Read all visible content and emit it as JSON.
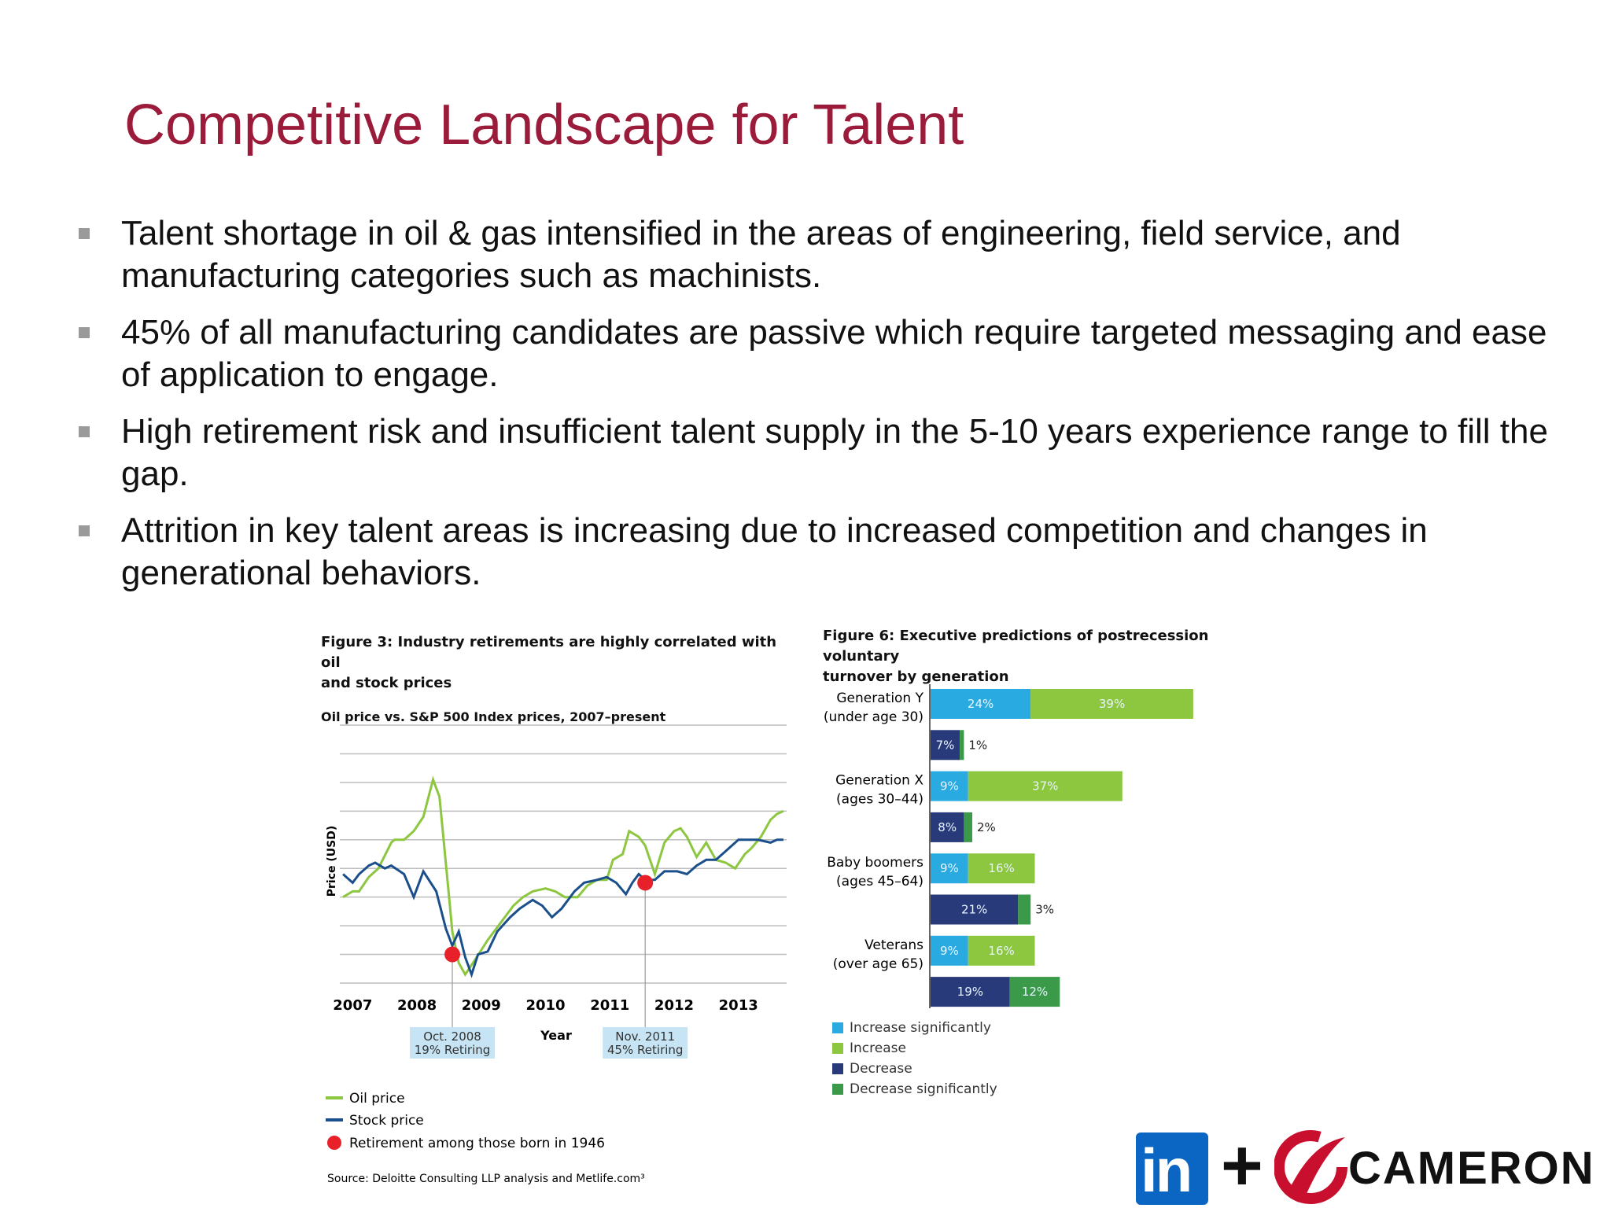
{
  "slide": {
    "title": "Competitive Landscape for Talent",
    "bullets": [
      "Talent shortage in oil & gas intensified in the areas of engineering, field service, and manufacturing categories such as machinists.",
      "45% of all manufacturing candidates are passive which require targeted messaging and ease of application to engage.",
      "High retirement risk and insufficient talent supply in the 5-10 years experience range to fill the gap.",
      "Attrition in key talent areas is increasing due to increased competition and changes in generational behaviors."
    ]
  },
  "figure3": {
    "title_line1": "Figure 3: Industry retirements are highly correlated with oil",
    "title_line2": "and stock prices",
    "subtitle": "Oil price vs. S&P 500 Index prices, 2007–present",
    "callout1_line1": "Oct. 2008",
    "callout1_line2": "19% Retiring",
    "callout2_line1": "Nov. 2011",
    "callout2_line2": "45% Retiring",
    "legend_oil": "Oil price",
    "legend_stock": "Stock price",
    "legend_retire": "Retirement among those born in 1946",
    "source": "Source: Deloitte Consulting LLP analysis and Metlife.com³"
  },
  "figure6": {
    "title_line1": "Figure 6: Executive predictions of postrecession voluntary",
    "title_line2": "turnover by generation",
    "groups": [
      {
        "label1": "Generation Y",
        "label2": "(under age 30)"
      },
      {
        "label1": "Generation X",
        "label2": "(ages 30–44)"
      },
      {
        "label1": "Baby boomers",
        "label2": "(ages 45–64)"
      },
      {
        "label1": "Veterans",
        "label2": "(over age 65)"
      }
    ],
    "legend": [
      "Increase significantly",
      "Increase",
      "Decrease",
      "Decrease significantly"
    ]
  },
  "logos": {
    "linkedin": "in",
    "plus": "+",
    "cameron": "CAMERON"
  },
  "colors": {
    "title": "#9b1b3a",
    "oil": "#8dc63f",
    "stock": "#1b4f8c",
    "retire": "#e8202a",
    "inc_sig": "#29abe2",
    "inc": "#8dc63f",
    "dec": "#283a7a",
    "dec_sig": "#3a9a4a"
  },
  "chart_data": [
    {
      "type": "line",
      "title": "Figure 3: Industry retirements are highly correlated with oil and stock prices",
      "subtitle": "Oil price vs. S&P 500 Index prices, 2007–present",
      "xlabel": "Year",
      "ylabel": "Price (USD)",
      "x_ticks": [
        "2007",
        "2008",
        "2009",
        "2010",
        "2011",
        "2012",
        "2013"
      ],
      "xlim": [
        2007,
        2013.7
      ],
      "ylim": [
        0,
        9
      ],
      "grid": true,
      "series": [
        {
          "name": "Oil price",
          "x": [
            2006.85,
            2007.0,
            2007.1,
            2007.25,
            2007.4,
            2007.6,
            2007.65,
            2007.8,
            2007.95,
            2008.1,
            2008.25,
            2008.35,
            2008.5,
            2008.55,
            2008.65,
            2008.75,
            2008.9,
            2009.1,
            2009.3,
            2009.5,
            2009.65,
            2009.8,
            2010.0,
            2010.15,
            2010.3,
            2010.5,
            2010.65,
            2010.8,
            2010.95,
            2011.05,
            2011.2,
            2011.3,
            2011.45,
            2011.55,
            2011.7,
            2011.85,
            2012.0,
            2012.1,
            2012.2,
            2012.35,
            2012.5,
            2012.65,
            2012.8,
            2012.95,
            2013.1,
            2013.2,
            2013.35,
            2013.5,
            2013.6,
            2013.7
          ],
          "values": [
            3.0,
            3.2,
            3.2,
            3.7,
            4.0,
            4.9,
            5.0,
            5.0,
            5.3,
            5.8,
            7.1,
            6.5,
            3.0,
            1.8,
            0.7,
            0.3,
            0.8,
            1.5,
            2.1,
            2.7,
            3.0,
            3.2,
            3.3,
            3.2,
            3.0,
            3.0,
            3.4,
            3.6,
            3.6,
            4.3,
            4.5,
            5.3,
            5.1,
            4.8,
            3.8,
            4.9,
            5.3,
            5.4,
            5.1,
            4.4,
            4.9,
            4.3,
            4.2,
            4.0,
            4.5,
            4.7,
            5.1,
            5.7,
            5.9,
            6.0
          ],
          "color": "#8dc63f"
        },
        {
          "name": "Stock price",
          "x": [
            2006.85,
            2007.0,
            2007.1,
            2007.25,
            2007.35,
            2007.5,
            2007.6,
            2007.8,
            2007.95,
            2008.1,
            2008.3,
            2008.45,
            2008.55,
            2008.65,
            2008.75,
            2008.85,
            2008.95,
            2009.1,
            2009.25,
            2009.45,
            2009.6,
            2009.8,
            2009.95,
            2010.1,
            2010.25,
            2010.45,
            2010.6,
            2010.8,
            2010.95,
            2011.1,
            2011.25,
            2011.35,
            2011.45,
            2011.55,
            2011.7,
            2011.85,
            2012.05,
            2012.2,
            2012.35,
            2012.5,
            2012.65,
            2012.8,
            2013.0,
            2013.15,
            2013.3,
            2013.5,
            2013.6,
            2013.7
          ],
          "values": [
            3.8,
            3.5,
            3.8,
            4.1,
            4.2,
            4.0,
            4.1,
            3.8,
            3.0,
            3.9,
            3.2,
            1.9,
            1.3,
            1.8,
            0.9,
            0.3,
            1.0,
            1.1,
            1.8,
            2.3,
            2.6,
            2.9,
            2.7,
            2.3,
            2.6,
            3.2,
            3.5,
            3.6,
            3.7,
            3.5,
            3.1,
            3.5,
            3.8,
            3.6,
            3.6,
            3.9,
            3.9,
            3.8,
            4.1,
            4.3,
            4.3,
            4.6,
            5.0,
            5.0,
            5.0,
            4.9,
            5.0,
            5.0
          ],
          "color": "#1b4f8c"
        }
      ],
      "annotations": [
        {
          "name": "Retirement among those born in 1946",
          "x": 2008.55,
          "y": 1.0,
          "label": "Oct. 2008 19% Retiring"
        },
        {
          "name": "Retirement among those born in 1946",
          "x": 2011.55,
          "y": 3.5,
          "label": "Nov. 2011 45% Retiring"
        }
      ],
      "legend_position": "bottom-left",
      "source": "Source: Deloitte Consulting LLP analysis and Metlife.com³"
    },
    {
      "type": "bar",
      "orientation": "horizontal",
      "stacked": true,
      "title": "Figure 6: Executive predictions of postrecession voluntary turnover by generation",
      "categories": [
        "Generation Y (under age 30)",
        "Generation X (ages 30–44)",
        "Baby boomers (ages 45–64)",
        "Veterans (over age 65)"
      ],
      "bars": [
        {
          "group": 0,
          "segments": [
            {
              "series": "Increase significantly",
              "value": 24
            },
            {
              "series": "Increase",
              "value": 39
            }
          ]
        },
        {
          "group": 0,
          "segments": [
            {
              "series": "Decrease",
              "value": 7
            },
            {
              "series": "Decrease significantly",
              "value": 1
            }
          ]
        },
        {
          "group": 1,
          "segments": [
            {
              "series": "Increase significantly",
              "value": 9
            },
            {
              "series": "Increase",
              "value": 37
            }
          ]
        },
        {
          "group": 1,
          "segments": [
            {
              "series": "Decrease",
              "value": 8
            },
            {
              "series": "Decrease significantly",
              "value": 2
            }
          ]
        },
        {
          "group": 2,
          "segments": [
            {
              "series": "Increase significantly",
              "value": 9
            },
            {
              "series": "Increase",
              "value": 16
            }
          ]
        },
        {
          "group": 2,
          "segments": [
            {
              "series": "Decrease",
              "value": 21
            },
            {
              "series": "Decrease significantly",
              "value": 3
            }
          ]
        },
        {
          "group": 3,
          "segments": [
            {
              "series": "Increase significantly",
              "value": 9
            },
            {
              "series": "Increase",
              "value": 16
            }
          ]
        },
        {
          "group": 3,
          "segments": [
            {
              "series": "Decrease",
              "value": 19
            },
            {
              "series": "Decrease significantly",
              "value": 12
            }
          ]
        }
      ],
      "legend": [
        "Increase significantly",
        "Increase",
        "Decrease",
        "Decrease significantly"
      ],
      "legend_position": "bottom-left"
    }
  ]
}
